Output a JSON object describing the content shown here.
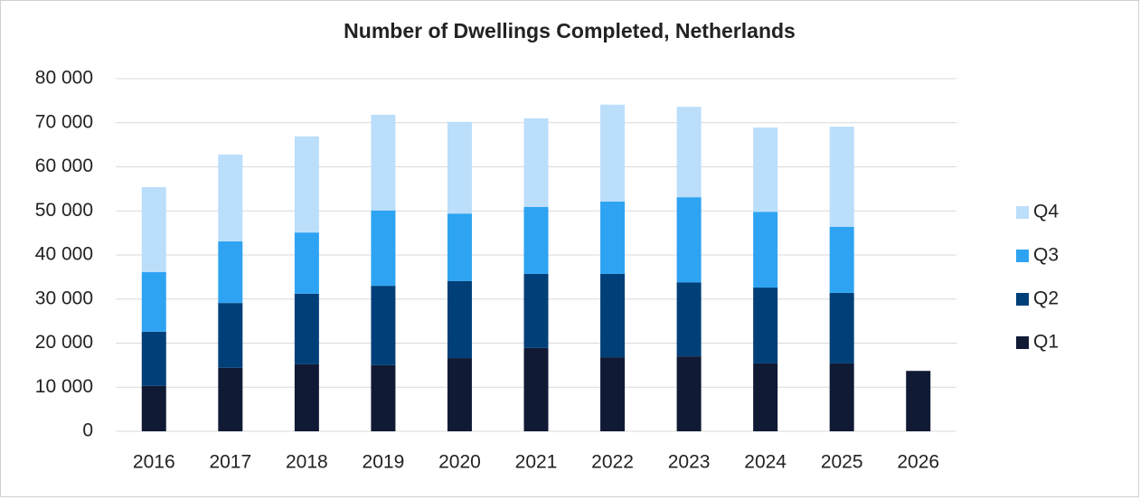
{
  "chart_data": {
    "type": "stacked_bar",
    "title": "Number of Dwellings Completed, Netherlands",
    "categories": [
      "2016",
      "2017",
      "2018",
      "2019",
      "2020",
      "2021",
      "2022",
      "2023",
      "2024",
      "2025",
      "2026"
    ],
    "series": [
      {
        "name": "Q1",
        "color": "#111a35",
        "values": [
          10300,
          14400,
          15200,
          15000,
          16600,
          18900,
          16800,
          17000,
          15400,
          15400,
          13700
        ]
      },
      {
        "name": "Q2",
        "color": "#003f78",
        "values": [
          12300,
          14700,
          16000,
          18000,
          17500,
          16800,
          18900,
          16800,
          17200,
          16000,
          null
        ]
      },
      {
        "name": "Q3",
        "color": "#2ea3f2",
        "values": [
          13500,
          14000,
          13900,
          17100,
          15300,
          15200,
          16400,
          19300,
          17200,
          15000,
          null
        ]
      },
      {
        "name": "Q4",
        "color": "#bbdefb",
        "values": [
          19300,
          19700,
          21800,
          21700,
          20800,
          20100,
          22000,
          20500,
          19100,
          22700,
          null
        ]
      }
    ],
    "ylim": [
      0,
      80000
    ],
    "yticks": [
      0,
      {
        "value": 10000,
        "label": "10 000"
      },
      {
        "value": 20000,
        "label": "20 000"
      },
      {
        "value": 30000,
        "label": "30 000"
      },
      {
        "value": 40000,
        "label": "40 000"
      },
      {
        "value": 50000,
        "label": "50 000"
      },
      {
        "value": 60000,
        "label": "60 000"
      },
      {
        "value": 70000,
        "label": "70 000"
      },
      {
        "value": 80000,
        "label": "80 000"
      }
    ],
    "grid": true,
    "legend": "right"
  }
}
